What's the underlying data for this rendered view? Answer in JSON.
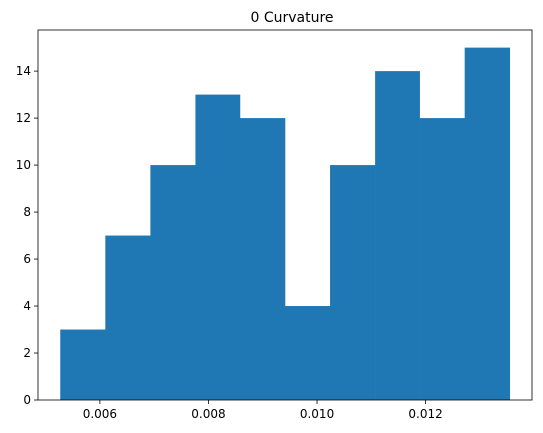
{
  "chart_data": {
    "type": "bar",
    "title": "0 Curvature",
    "xlabel": "",
    "ylabel": "",
    "bins": [
      {
        "x0": 0.00527,
        "x1": 0.0061,
        "count": 3
      },
      {
        "x0": 0.0061,
        "x1": 0.00693,
        "count": 7
      },
      {
        "x0": 0.00693,
        "x1": 0.00776,
        "count": 10
      },
      {
        "x0": 0.00776,
        "x1": 0.00858,
        "count": 13
      },
      {
        "x0": 0.00858,
        "x1": 0.00941,
        "count": 12
      },
      {
        "x0": 0.00941,
        "x1": 0.01024,
        "count": 4
      },
      {
        "x0": 0.01024,
        "x1": 0.01107,
        "count": 10
      },
      {
        "x0": 0.01107,
        "x1": 0.01189,
        "count": 14
      },
      {
        "x0": 0.01189,
        "x1": 0.01272,
        "count": 12
      },
      {
        "x0": 0.01272,
        "x1": 0.01355,
        "count": 15
      }
    ],
    "xlim": [
      0.00486,
      0.01396
    ],
    "ylim": [
      0,
      15.75
    ],
    "x_ticks": [
      {
        "value": 0.006,
        "label": "0.006"
      },
      {
        "value": 0.008,
        "label": "0.008"
      },
      {
        "value": 0.01,
        "label": "0.010"
      },
      {
        "value": 0.012,
        "label": "0.012"
      }
    ],
    "y_ticks": [
      {
        "value": 0,
        "label": "0"
      },
      {
        "value": 2,
        "label": "2"
      },
      {
        "value": 4,
        "label": "4"
      },
      {
        "value": 6,
        "label": "6"
      },
      {
        "value": 8,
        "label": "8"
      },
      {
        "value": 10,
        "label": "10"
      },
      {
        "value": 12,
        "label": "12"
      },
      {
        "value": 14,
        "label": "14"
      }
    ],
    "bar_color": "#1f77b4",
    "grid": false,
    "legend": "none"
  }
}
